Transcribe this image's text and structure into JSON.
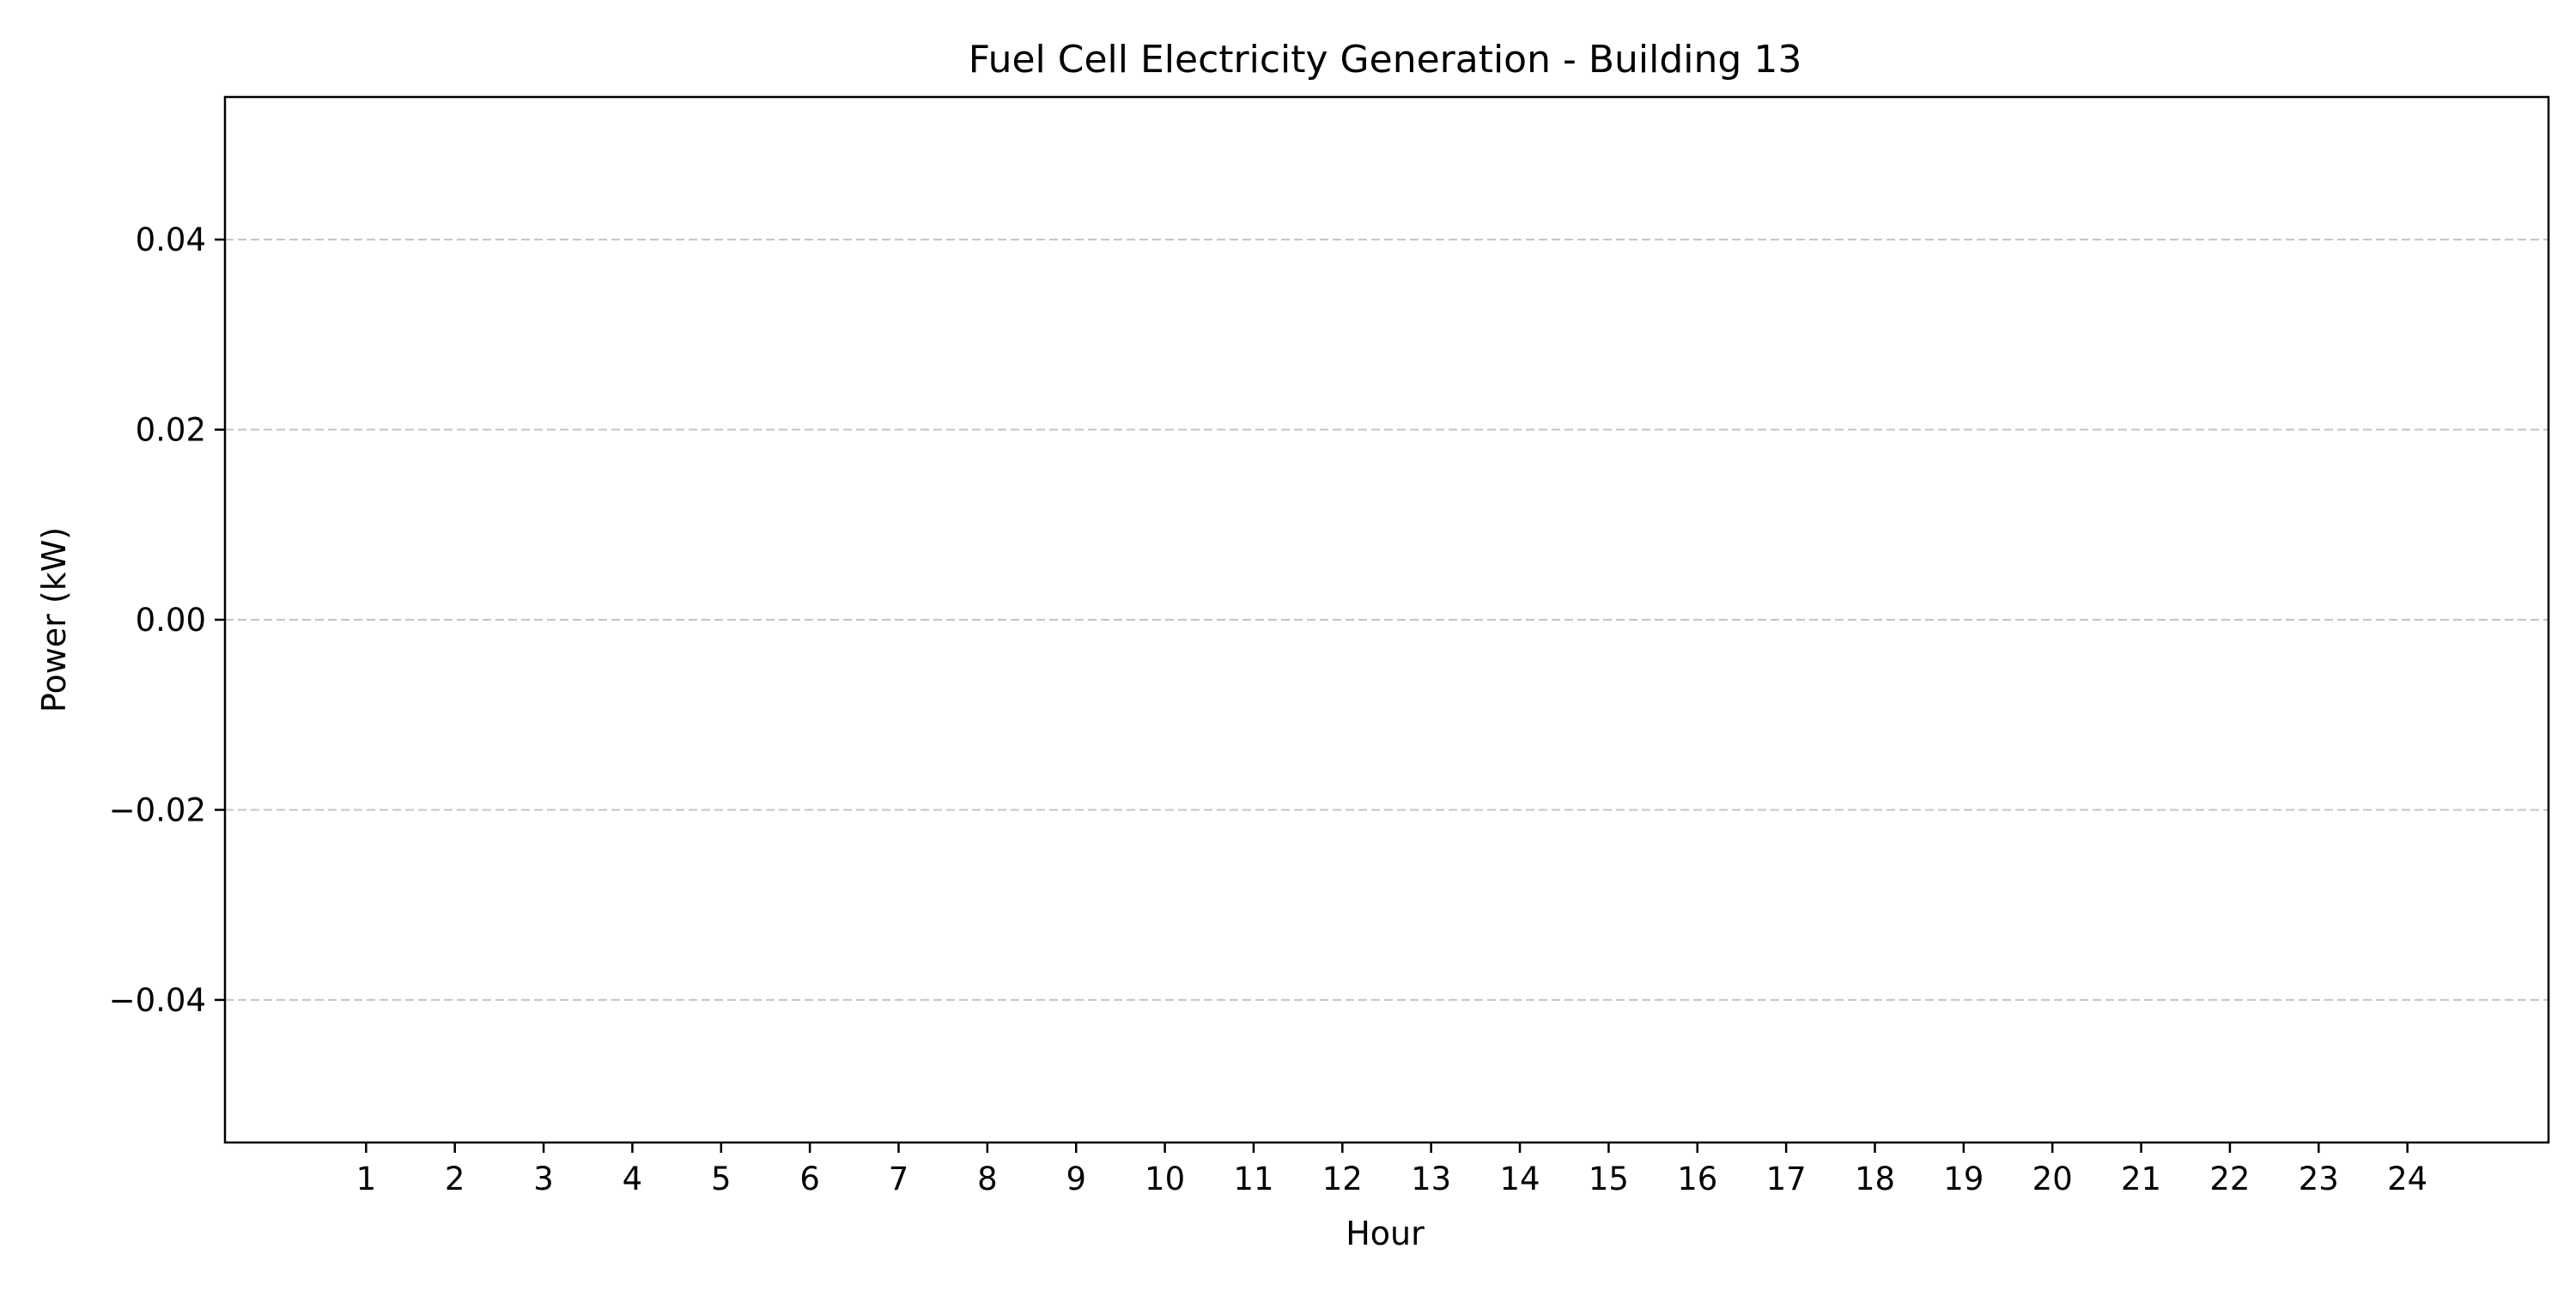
{
  "chart_data": {
    "type": "bar",
    "title": "Fuel Cell Electricity Generation - Building 13",
    "xlabel": "Hour",
    "ylabel": "Power (kW)",
    "categories": [
      "1",
      "2",
      "3",
      "4",
      "5",
      "6",
      "7",
      "8",
      "9",
      "10",
      "11",
      "12",
      "13",
      "14",
      "15",
      "16",
      "17",
      "18",
      "19",
      "20",
      "21",
      "22",
      "23",
      "24"
    ],
    "values": [
      0,
      0,
      0,
      0,
      0,
      0,
      0,
      0,
      0,
      0,
      0,
      0,
      0,
      0,
      0,
      0,
      0,
      0,
      0,
      0,
      0,
      0,
      0,
      0
    ],
    "xlim": [
      -0.59,
      25.59
    ],
    "ylim": [
      -0.055,
      0.055
    ],
    "yticks": [
      -0.04,
      -0.02,
      0.0,
      0.02,
      0.04
    ],
    "ytick_labels": [
      "−0.04",
      "−0.02",
      "0.00",
      "0.02",
      "0.04"
    ],
    "grid": {
      "axis": "y",
      "style": "dashed",
      "color": "#c4c4c4"
    },
    "legend": "none"
  }
}
